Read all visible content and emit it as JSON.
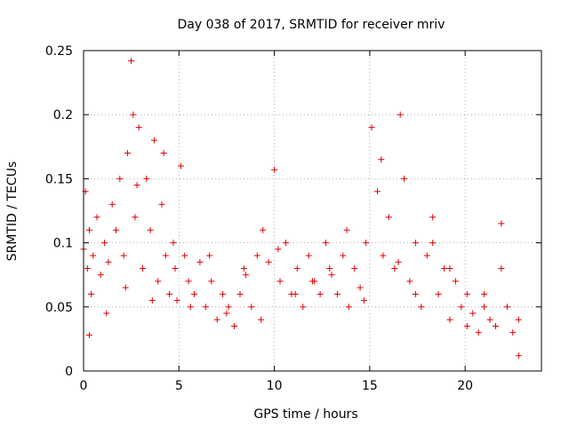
{
  "chart_data": {
    "type": "scatter",
    "title": "Day 038 of 2017, SRMTID for receiver mriv",
    "xlabel": "GPS time / hours",
    "ylabel": "SRMTID / TECUs",
    "xlim": [
      0,
      24
    ],
    "ylim": [
      0,
      0.25
    ],
    "xticks": [
      "0",
      "5",
      "10",
      "15",
      "20"
    ],
    "xtick_values": [
      0,
      5,
      10,
      15,
      20
    ],
    "yticks": [
      "0",
      "0.05",
      "0.1",
      "0.15",
      "0.2",
      "0.25"
    ],
    "ytick_values": [
      0,
      0.05,
      0.1,
      0.15,
      0.2,
      0.25
    ],
    "grid": true,
    "marker": "plus",
    "colors": {
      "points": "#e00000",
      "grid": "#a0a0a0",
      "axis": "#000000"
    },
    "series": [
      {
        "x": [
          0.0,
          0.1,
          0.2,
          0.3,
          0.4,
          0.5,
          0.7,
          0.9,
          1.1,
          1.3,
          1.5,
          1.7,
          1.9,
          2.1,
          2.3,
          2.5,
          2.6,
          2.7,
          2.9,
          3.1,
          3.3,
          3.5,
          3.7,
          3.9,
          4.1,
          4.3,
          4.5,
          4.7,
          4.9,
          5.1,
          5.3,
          5.5,
          5.8,
          6.1,
          6.4,
          6.7,
          7.0,
          7.3,
          7.6,
          7.9,
          8.2,
          8.5,
          8.8,
          9.1,
          9.4,
          9.7,
          10.0,
          10.3,
          10.6,
          10.9,
          11.2,
          11.5,
          11.8,
          12.1,
          12.4,
          12.7,
          13.0,
          13.3,
          13.6,
          13.9,
          14.2,
          14.5,
          14.8,
          15.1,
          15.4,
          15.7,
          16.0,
          16.3,
          16.6,
          16.8,
          17.1,
          17.4,
          17.7,
          18.0,
          18.3,
          18.6,
          18.9,
          19.2,
          19.5,
          19.8,
          20.1,
          20.4,
          20.7,
          21.0,
          21.3,
          21.6,
          21.9,
          22.2,
          22.5,
          22.8,
          0.3,
          1.2,
          2.2,
          2.8,
          3.6,
          4.2,
          4.8,
          5.6,
          6.6,
          7.5,
          8.4,
          9.3,
          10.2,
          11.1,
          12.0,
          12.9,
          13.8,
          14.7,
          15.6,
          16.5,
          17.4,
          18.3,
          19.2,
          20.1,
          21.0,
          21.9,
          22.8
        ],
        "y": [
          0.095,
          0.14,
          0.08,
          0.11,
          0.06,
          0.09,
          0.12,
          0.075,
          0.1,
          0.085,
          0.13,
          0.11,
          0.15,
          0.09,
          0.17,
          0.242,
          0.2,
          0.12,
          0.19,
          0.08,
          0.15,
          0.11,
          0.18,
          0.07,
          0.13,
          0.09,
          0.06,
          0.1,
          0.055,
          0.16,
          0.09,
          0.07,
          0.06,
          0.085,
          0.05,
          0.07,
          0.04,
          0.06,
          0.05,
          0.035,
          0.06,
          0.075,
          0.05,
          0.09,
          0.11,
          0.085,
          0.157,
          0.07,
          0.1,
          0.06,
          0.08,
          0.05,
          0.09,
          0.07,
          0.06,
          0.1,
          0.075,
          0.06,
          0.09,
          0.05,
          0.08,
          0.065,
          0.1,
          0.19,
          0.14,
          0.09,
          0.12,
          0.08,
          0.2,
          0.15,
          0.07,
          0.1,
          0.05,
          0.09,
          0.12,
          0.06,
          0.08,
          0.04,
          0.07,
          0.05,
          0.06,
          0.045,
          0.03,
          0.05,
          0.04,
          0.035,
          0.115,
          0.05,
          0.03,
          0.04,
          0.028,
          0.045,
          0.065,
          0.145,
          0.055,
          0.17,
          0.08,
          0.05,
          0.09,
          0.045,
          0.08,
          0.04,
          0.095,
          0.06,
          0.07,
          0.08,
          0.11,
          0.055,
          0.165,
          0.085,
          0.06,
          0.1,
          0.08,
          0.035,
          0.06,
          0.08,
          0.012
        ]
      }
    ]
  }
}
